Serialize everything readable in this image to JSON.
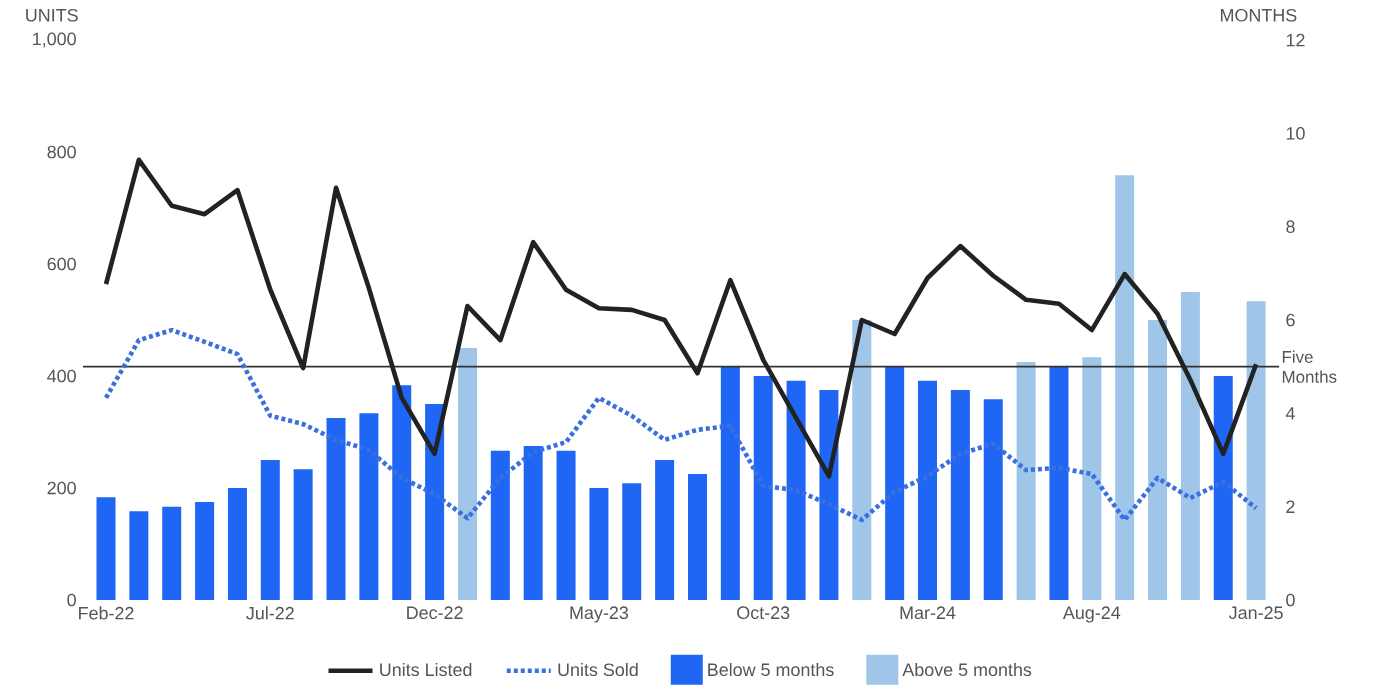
{
  "chart_data": {
    "type": "bar",
    "ylabel": "UNITS",
    "y2label": "MONTHS",
    "categories": [
      "Feb-22",
      null,
      null,
      null,
      null,
      "Jul-22",
      null,
      null,
      null,
      null,
      "Dec-22",
      null,
      null,
      null,
      null,
      "May-23",
      null,
      null,
      null,
      null,
      "Oct-23",
      null,
      null,
      null,
      null,
      "Mar-24",
      null,
      null,
      null,
      null,
      "Aug-24",
      null,
      null,
      null,
      null,
      "Jan-25"
    ],
    "ylim": [
      0,
      1000
    ],
    "yticks": [
      0,
      200,
      400,
      600,
      800,
      {
        "value": 1000,
        "label": "1,000"
      }
    ],
    "y2lim": [
      0,
      12
    ],
    "y2ticks": [
      0,
      2,
      4,
      6,
      8,
      10,
      12
    ],
    "legend": "bottom",
    "ref_lines": [
      {
        "axis": "y2",
        "value": 5,
        "label": "Five Months",
        "color": "#333333"
      }
    ],
    "series": [
      {
        "name": "Units Listed",
        "type": "line",
        "color": "#222222",
        "line_style": "solid",
        "values": [
          564,
          786,
          704,
          689,
          732,
          554,
          414,
          736,
          557,
          361,
          261,
          525,
          464,
          639,
          554,
          521,
          518,
          500,
          405,
          571,
          429,
          325,
          221,
          500,
          475,
          575,
          632,
          579,
          536,
          529,
          482,
          582,
          511,
          393,
          261,
          421
        ]
      },
      {
        "name": "Units Sold",
        "type": "line",
        "color": "#3a6fe0",
        "line_style": "dotted",
        "values": [
          361,
          464,
          482,
          461,
          439,
          329,
          314,
          286,
          268,
          218,
          189,
          146,
          218,
          264,
          282,
          361,
          329,
          286,
          304,
          311,
          204,
          196,
          171,
          143,
          193,
          221,
          261,
          279,
          232,
          236,
          225,
          143,
          218,
          182,
          211,
          164
        ]
      },
      {
        "name": "Below 5 months",
        "axis": "y2",
        "color": "#1f66f5",
        "values": [
          2.2,
          1.9,
          2.0,
          2.1,
          2.4,
          3.0,
          2.8,
          3.9,
          4.0,
          4.6,
          4.2,
          null,
          3.2,
          3.3,
          3.2,
          2.4,
          2.5,
          3.0,
          2.7,
          5.0,
          4.8,
          4.7,
          4.5,
          null,
          5.0,
          4.7,
          4.5,
          4.3,
          null,
          5.0,
          null,
          null,
          null,
          null,
          4.8,
          null
        ]
      },
      {
        "name": "Above 5 months",
        "axis": "y2",
        "color": "#9fc5e8",
        "values": [
          null,
          null,
          null,
          null,
          null,
          null,
          null,
          null,
          null,
          null,
          null,
          5.4,
          null,
          null,
          null,
          null,
          null,
          null,
          null,
          null,
          null,
          null,
          null,
          6.0,
          null,
          null,
          null,
          null,
          5.1,
          null,
          5.2,
          9.1,
          6.0,
          6.6,
          null,
          6.4
        ]
      }
    ]
  }
}
